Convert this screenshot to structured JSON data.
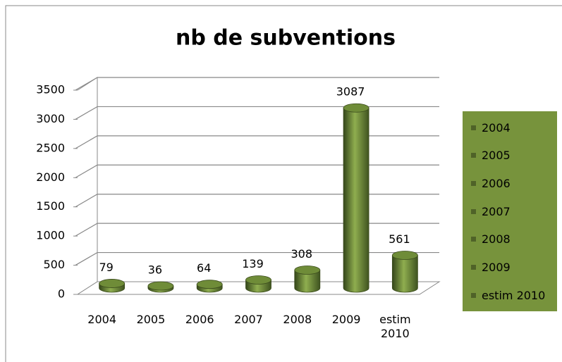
{
  "chart_data": {
    "type": "bar",
    "title": "nb de subventions",
    "categories": [
      "2004",
      "2005",
      "2006",
      "2007",
      "2008",
      "2009",
      "estim 2010"
    ],
    "values": [
      79,
      36,
      64,
      139,
      308,
      3087,
      561
    ],
    "color": "#4f6228",
    "legend_background": "#77933c",
    "ylim": [
      0,
      3500
    ],
    "yticks": [
      0,
      500,
      1000,
      1500,
      2000,
      2500,
      3000,
      3500
    ],
    "grid": true,
    "legend": "right"
  }
}
